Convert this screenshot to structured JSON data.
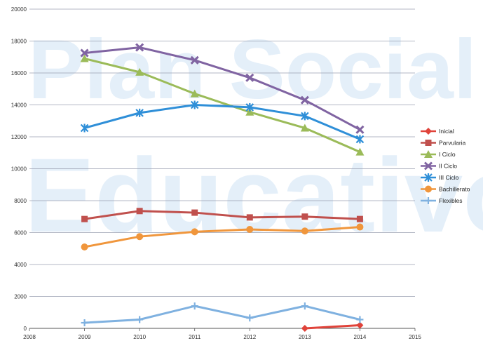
{
  "chart_data": {
    "type": "line",
    "title": "",
    "xlabel": "",
    "ylabel": "",
    "xlim": [
      2008,
      2015
    ],
    "ylim": [
      0,
      20000
    ],
    "x_ticks": [
      "2008",
      "2009",
      "2010",
      "2011",
      "2012",
      "2013",
      "2014",
      "2015"
    ],
    "y_ticks": [
      "0",
      "2000",
      "4000",
      "6000",
      "8000",
      "10000",
      "12000",
      "14000",
      "16000",
      "18000",
      "20000"
    ],
    "grid": true,
    "legend_position": "right",
    "watermark": {
      "lines": [
        "Plan Social",
        "Educativo"
      ],
      "colors": [
        "#3d8fd6",
        "#e04040"
      ]
    },
    "series": [
      {
        "name": "Inicial",
        "color": "#e0433a",
        "marker": "diamond",
        "x": [
          2013,
          2014
        ],
        "y": [
          0,
          200
        ]
      },
      {
        "name": "Parvularia",
        "color": "#c0504d",
        "marker": "square",
        "x": [
          2009,
          2010,
          2011,
          2012,
          2013,
          2014
        ],
        "y": [
          6850,
          7350,
          7250,
          6950,
          7000,
          6850
        ]
      },
      {
        "name": "I Ciclo",
        "color": "#9bbb59",
        "marker": "triangle",
        "x": [
          2009,
          2010,
          2011,
          2012,
          2013,
          2014
        ],
        "y": [
          16900,
          16050,
          14700,
          13550,
          12550,
          11050
        ]
      },
      {
        "name": "II Ciclo",
        "color": "#8064a2",
        "marker": "x",
        "x": [
          2009,
          2010,
          2011,
          2012,
          2013,
          2014
        ],
        "y": [
          17250,
          17600,
          16800,
          15700,
          14300,
          12450
        ]
      },
      {
        "name": "III Ciclo",
        "color": "#2f8fd8",
        "marker": "star",
        "x": [
          2009,
          2010,
          2011,
          2012,
          2013,
          2014
        ],
        "y": [
          12550,
          13500,
          14000,
          13850,
          13300,
          11850
        ]
      },
      {
        "name": "Bachillerato",
        "color": "#f0963c",
        "marker": "circle",
        "x": [
          2009,
          2010,
          2011,
          2012,
          2013,
          2014
        ],
        "y": [
          5100,
          5750,
          6050,
          6200,
          6100,
          6350
        ]
      },
      {
        "name": "Flexibles",
        "color": "#7fb1e0",
        "marker": "plus",
        "x": [
          2009,
          2010,
          2011,
          2012,
          2013,
          2014
        ],
        "y": [
          350,
          550,
          1400,
          650,
          1400,
          550
        ]
      }
    ]
  }
}
